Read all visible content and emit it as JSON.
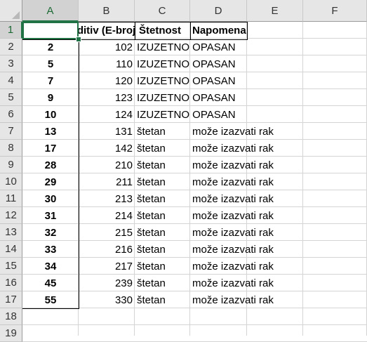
{
  "columns": [
    "A",
    "B",
    "C",
    "D",
    "E",
    "F"
  ],
  "rows": [
    "1",
    "2",
    "3",
    "4",
    "5",
    "6",
    "7",
    "8",
    "9",
    "10",
    "11",
    "12",
    "13",
    "14",
    "15",
    "16",
    "17",
    "18",
    "19"
  ],
  "selected_cell": "A1",
  "header_row": {
    "a": "",
    "b": "Aditiv (E-broj)",
    "c": "Štetnost",
    "d": "Napomena"
  },
  "data_rows": [
    {
      "a": "2",
      "b": "102",
      "c": "IZUZETNO OPASAN",
      "d": ""
    },
    {
      "a": "5",
      "b": "110",
      "c": "IZUZETNO OPASAN",
      "d": ""
    },
    {
      "a": "7",
      "b": "120",
      "c": "IZUZETNO OPASAN",
      "d": ""
    },
    {
      "a": "9",
      "b": "123",
      "c": "IZUZETNO OPASAN",
      "d": ""
    },
    {
      "a": "10",
      "b": "124",
      "c": "IZUZETNO OPASAN",
      "d": ""
    },
    {
      "a": "13",
      "b": "131",
      "c": "štetan",
      "d": "može izazvati rak"
    },
    {
      "a": "17",
      "b": "142",
      "c": "štetan",
      "d": "može izazvati rak"
    },
    {
      "a": "28",
      "b": "210",
      "c": "štetan",
      "d": "može izazvati rak"
    },
    {
      "a": "29",
      "b": "211",
      "c": "štetan",
      "d": "može izazvati rak"
    },
    {
      "a": "30",
      "b": "213",
      "c": "štetan",
      "d": "može izazvati rak"
    },
    {
      "a": "31",
      "b": "214",
      "c": "štetan",
      "d": "može izazvati rak"
    },
    {
      "a": "32",
      "b": "215",
      "c": "štetan",
      "d": "može izazvati rak"
    },
    {
      "a": "33",
      "b": "216",
      "c": "štetan",
      "d": "može izazvati rak"
    },
    {
      "a": "34",
      "b": "217",
      "c": "štetan",
      "d": "može izazvati rak"
    },
    {
      "a": "45",
      "b": "239",
      "c": "štetan",
      "d": "može izazvati rak"
    },
    {
      "a": "55",
      "b": "330",
      "c": "štetan",
      "d": "može izazvati rak"
    }
  ],
  "colors": {
    "selection": "#217346",
    "header_bg": "#e6e6e6",
    "gridline": "#d4d4d4"
  }
}
